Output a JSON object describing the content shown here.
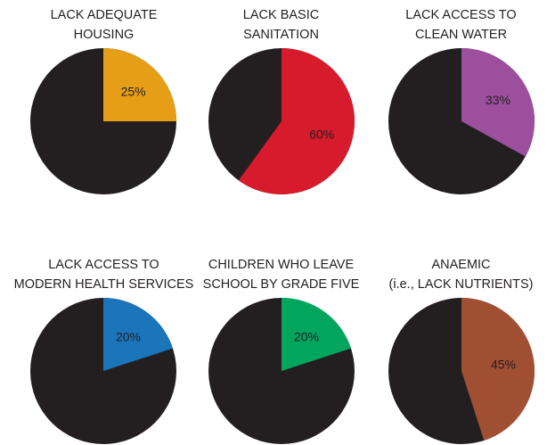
{
  "chart_data": [
    {
      "type": "pie",
      "title_lines": [
        "LACK ADEQUATE",
        "HOUSING"
      ],
      "value": 25,
      "label": "25%",
      "color": "#e59e16",
      "rest_color": "#231f20"
    },
    {
      "type": "pie",
      "title_lines": [
        "LACK BASIC",
        "SANITATION"
      ],
      "value": 60,
      "label": "60%",
      "color": "#d71a2c",
      "rest_color": "#231f20"
    },
    {
      "type": "pie",
      "title_lines": [
        "LACK ACCESS TO",
        "CLEAN WATER"
      ],
      "value": 33,
      "label": "33%",
      "color": "#9b4f9c",
      "rest_color": "#231f20"
    },
    {
      "type": "pie",
      "title_lines": [
        "LACK ACCESS TO",
        "MODERN HEALTH SERVICES"
      ],
      "value": 20,
      "label": "20%",
      "color": "#1a75bb",
      "rest_color": "#231f20"
    },
    {
      "type": "pie",
      "title_lines": [
        "CHILDREN WHO LEAVE",
        "SCHOOL BY GRADE FIVE"
      ],
      "value": 20,
      "label": "20%",
      "color": "#00a65e",
      "rest_color": "#231f20"
    },
    {
      "type": "pie",
      "title_lines": [
        "ANAEMIC",
        "(i.e., LACK NUTRIENTS)"
      ],
      "value": 45,
      "label": "45%",
      "color": "#a14f32",
      "rest_color": "#231f20"
    }
  ]
}
